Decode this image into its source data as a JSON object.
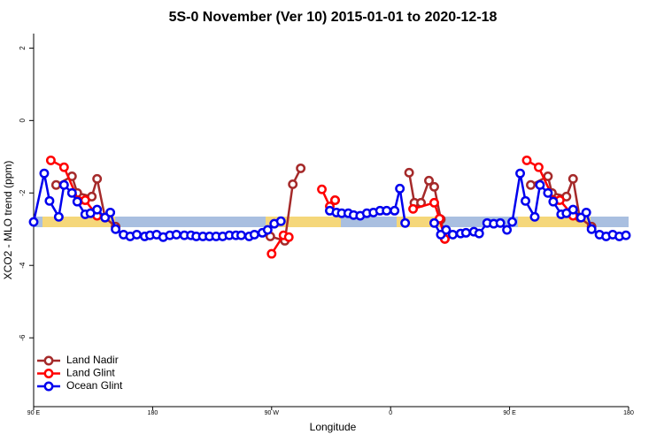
{
  "chart_data": {
    "type": "line",
    "title": "5S-0 November (Ver 10)   2015-01-01 to 2020-12-18",
    "x_label": "Longitude",
    "y_label": "XCO2 - MLO trend (ppm)",
    "xlim": [
      90,
      540
    ],
    "ylim": [
      -7.9,
      2.4
    ],
    "xticks": [
      {
        "value": 90,
        "label": "90 E"
      },
      {
        "value": 180,
        "label": "180"
      },
      {
        "value": 270,
        "label": "90 W"
      },
      {
        "value": 360,
        "label": "0"
      },
      {
        "value": 450,
        "label": "90 E"
      },
      {
        "value": 540,
        "label": "180"
      }
    ],
    "yticks": [
      2,
      0,
      -2,
      -4,
      -6
    ],
    "legend": "bottomleft",
    "series": [
      {
        "name": "Land Nadir",
        "color": "#a52a2a",
        "x": [
          107,
          119,
          123,
          134,
          138,
          144,
          152,
          null,
          269,
          280,
          286,
          292,
          null,
          318,
          null,
          374,
          378,
          383,
          389,
          393,
          398,
          401,
          null,
          466,
          479,
          482,
          493,
          498,
          503,
          512
        ],
        "values": [
          -1.78,
          -1.54,
          -2.0,
          -2.1,
          -1.61,
          -2.68,
          -2.93,
          null,
          -3.2,
          -3.32,
          -1.76,
          -1.32,
          null,
          -2.2,
          null,
          -1.44,
          -2.27,
          -2.27,
          -1.66,
          -1.83,
          -2.73,
          -3.27,
          null,
          -1.78,
          -1.54,
          -2.0,
          -2.1,
          -1.61,
          -2.68,
          -2.93
        ]
      },
      {
        "name": "Land Glint",
        "color": "#ff0000",
        "x": [
          103,
          113,
          124,
          129,
          138,
          null,
          270,
          279,
          283,
          null,
          308,
          314,
          318,
          null,
          377,
          393,
          397,
          401,
          null,
          463,
          472,
          484,
          488,
          498
        ],
        "values": [
          -1.1,
          -1.29,
          -2.22,
          -2.2,
          -2.63,
          null,
          -3.68,
          -3.17,
          -3.22,
          null,
          -1.9,
          -2.37,
          -2.2,
          null,
          -2.44,
          -2.27,
          -2.71,
          -3.27,
          null,
          -1.1,
          -1.29,
          -2.22,
          -2.2,
          -2.63
        ]
      },
      {
        "name": "Ocean Glint",
        "color": "#0000ee",
        "x": [
          90,
          98,
          102,
          109,
          113,
          119,
          123,
          129,
          133,
          138,
          144,
          148,
          152,
          158,
          163,
          168,
          174,
          178,
          183,
          188,
          193,
          198,
          204,
          209,
          213,
          218,
          223,
          228,
          233,
          238,
          243,
          247,
          253,
          257,
          263,
          267,
          272,
          277,
          null,
          314,
          319,
          323,
          328,
          332,
          337,
          342,
          347,
          352,
          357,
          363,
          367,
          371,
          null,
          393,
          398,
          402,
          407,
          413,
          417,
          423,
          427,
          433,
          438,
          443,
          448,
          452,
          458,
          462,
          469,
          473,
          479,
          483,
          489,
          493,
          498,
          504,
          508,
          512,
          518,
          523,
          528,
          533,
          538
        ],
        "values": [
          -2.8,
          -1.46,
          -2.22,
          -2.66,
          -1.78,
          -2.0,
          -2.24,
          -2.59,
          -2.56,
          -2.46,
          -2.68,
          -2.54,
          -3.0,
          -3.15,
          -3.2,
          -3.15,
          -3.2,
          -3.17,
          -3.15,
          -3.22,
          -3.17,
          -3.15,
          -3.17,
          -3.17,
          -3.2,
          -3.2,
          -3.2,
          -3.2,
          -3.2,
          -3.17,
          -3.17,
          -3.17,
          -3.2,
          -3.15,
          -3.1,
          -3.02,
          -2.85,
          -2.78,
          null,
          -2.49,
          -2.54,
          -2.56,
          -2.56,
          -2.61,
          -2.63,
          -2.56,
          -2.54,
          -2.49,
          -2.49,
          -2.49,
          -1.88,
          -2.83,
          null,
          -2.83,
          -3.15,
          -3.02,
          -3.15,
          -3.12,
          -3.1,
          -3.07,
          -3.12,
          -2.83,
          -2.85,
          -2.83,
          -3.02,
          -2.8,
          -1.46,
          -2.22,
          -2.66,
          -1.78,
          -2.0,
          -2.24,
          -2.59,
          -2.56,
          -2.46,
          -2.68,
          -2.54,
          -3.0,
          -3.15,
          -3.2,
          -3.15,
          -3.2,
          -3.17
        ]
      }
    ]
  }
}
